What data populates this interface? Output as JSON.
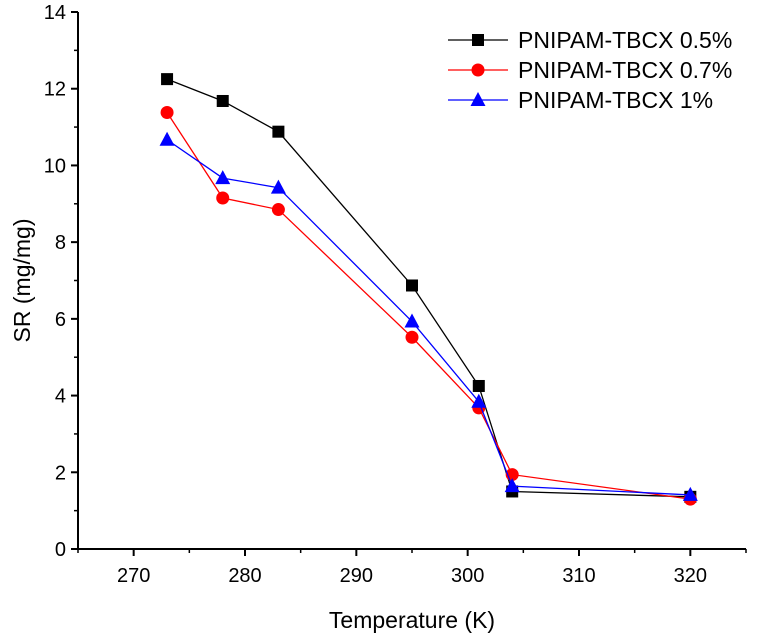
{
  "chart_data": {
    "type": "line",
    "title": "",
    "xlabel": "Temperature (K)",
    "ylabel": "SR (mg/mg)",
    "xlim": [
      265,
      325
    ],
    "ylim": [
      0,
      14
    ],
    "xticks": [
      270,
      280,
      290,
      300,
      310,
      320
    ],
    "yticks": [
      0,
      2,
      4,
      6,
      8,
      10,
      12,
      14
    ],
    "x_tick_labels": [
      "270",
      "280",
      "290",
      "300",
      "310",
      "320"
    ],
    "y_tick_labels": [
      "0",
      "2",
      "4",
      "6",
      "8",
      "10",
      "12",
      "14"
    ],
    "grid": false,
    "legend_position": "top-right",
    "series": [
      {
        "name": "PNIPAM-TBCX 0.5%",
        "color": "#000000",
        "marker": "square",
        "x": [
          273,
          278,
          283,
          295,
          301,
          304,
          320
        ],
        "y": [
          12.25,
          11.68,
          10.88,
          6.87,
          4.25,
          1.5,
          1.36
        ]
      },
      {
        "name": "PNIPAM-TBCX 0.7%",
        "color": "#ff0000",
        "marker": "circle",
        "x": [
          273,
          278,
          283,
          295,
          301,
          304,
          320
        ],
        "y": [
          11.38,
          9.15,
          8.85,
          5.52,
          3.68,
          1.94,
          1.3
        ]
      },
      {
        "name": "PNIPAM-TBCX 1%",
        "color": "#0000ff",
        "marker": "triangle",
        "x": [
          273,
          278,
          283,
          295,
          301,
          304,
          320
        ],
        "y": [
          10.67,
          9.67,
          9.42,
          5.93,
          3.84,
          1.64,
          1.41
        ]
      }
    ]
  }
}
